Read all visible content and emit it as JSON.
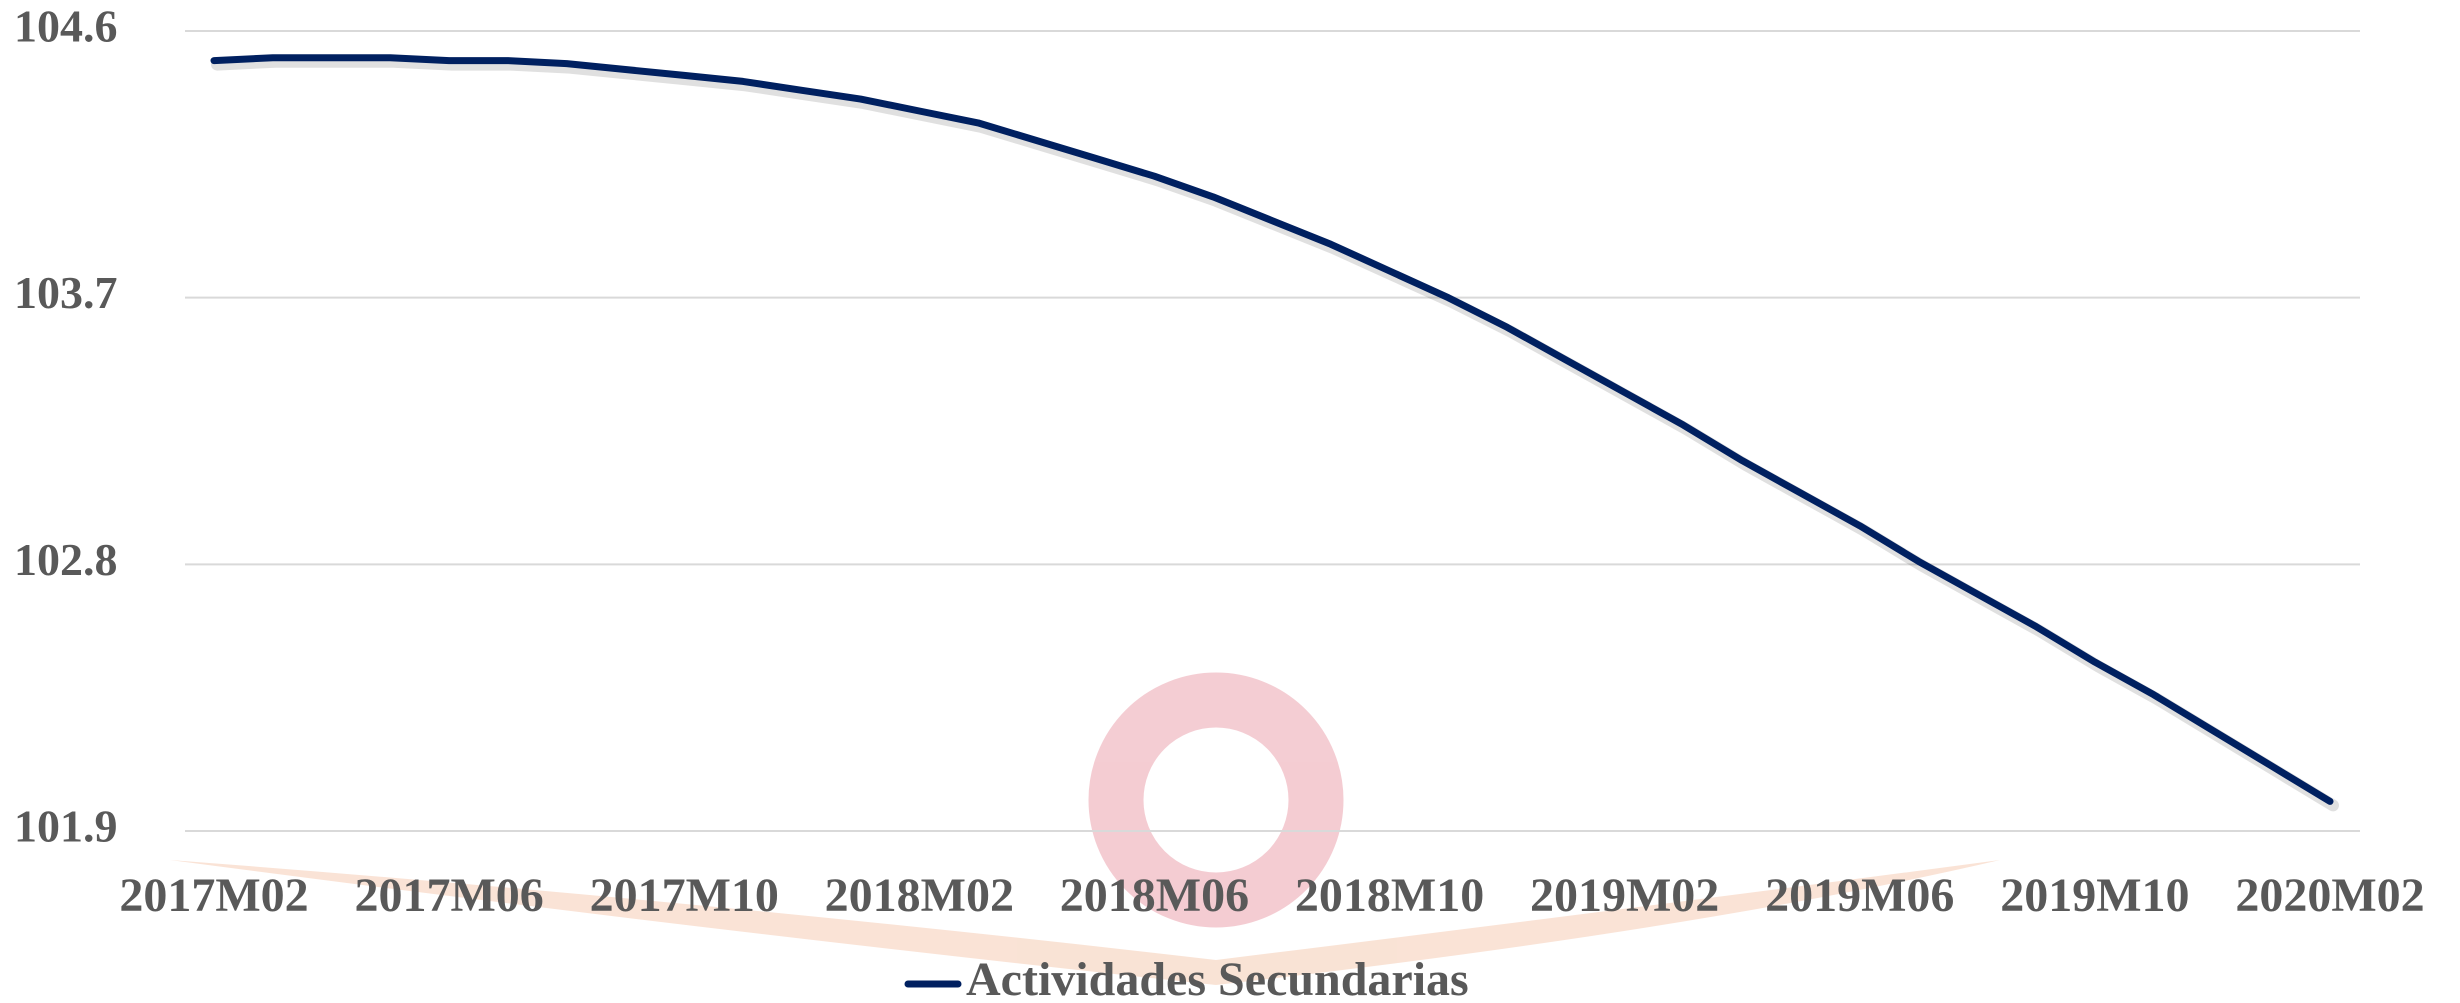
{
  "chart_data": {
    "type": "line",
    "categories": [
      "2017M02",
      null,
      null,
      null,
      "2017M06",
      null,
      null,
      null,
      "2017M10",
      null,
      null,
      null,
      "2018M02",
      null,
      null,
      null,
      "2018M06",
      null,
      null,
      null,
      "2018M10",
      null,
      null,
      null,
      "2019M02",
      null,
      null,
      null,
      "2019M06",
      null,
      null,
      null,
      "2019M10",
      null,
      null,
      null,
      "2020M02"
    ],
    "series": [
      {
        "name": "Actividades Secundarias",
        "color": "#002060",
        "values": [
          104.5,
          104.51,
          104.51,
          104.51,
          104.5,
          104.5,
          104.49,
          104.47,
          104.45,
          104.43,
          104.4,
          104.37,
          104.33,
          104.29,
          104.23,
          104.17,
          104.11,
          104.04,
          103.96,
          103.88,
          103.79,
          103.7,
          103.6,
          103.49,
          103.38,
          103.27,
          103.15,
          103.04,
          102.93,
          102.81,
          102.7,
          102.59,
          102.47,
          102.36,
          102.24,
          102.12,
          102.0
        ]
      }
    ],
    "ylim": [
      101.9,
      104.6
    ],
    "yticks": [
      101.9,
      102.8,
      103.7,
      104.6
    ],
    "grid": true,
    "legend": "bottom"
  }
}
